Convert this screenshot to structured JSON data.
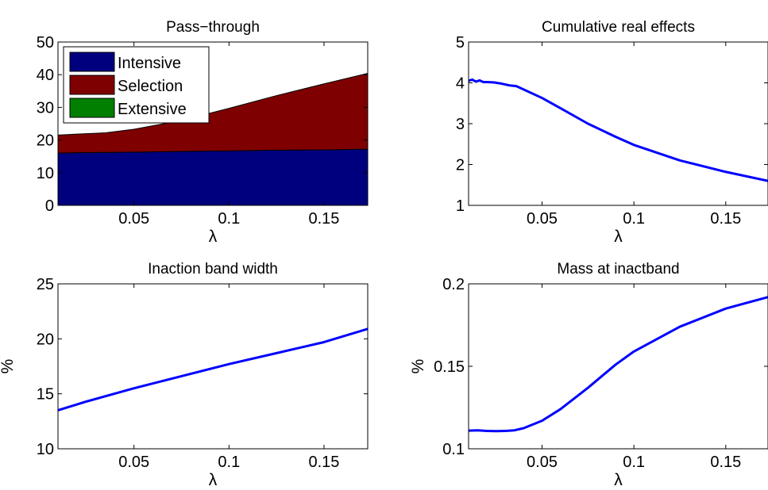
{
  "chart_data": [
    {
      "type": "area",
      "title": "Pass−through",
      "xlabel": "λ",
      "ylabel": "",
      "xlim": [
        0.01,
        0.173
      ],
      "ylim": [
        0,
        50
      ],
      "xticks": [
        0.05,
        0.1,
        0.15
      ],
      "xtick_labels": [
        "0.05",
        "0.1",
        "0.15"
      ],
      "yticks": [
        0,
        10,
        20,
        30,
        40,
        50
      ],
      "ytick_labels": [
        "0",
        "10",
        "20",
        "30",
        "40",
        "50"
      ],
      "stacked": true,
      "legend_position": "top-left",
      "x": [
        0.01,
        0.02,
        0.035,
        0.05,
        0.075,
        0.1,
        0.125,
        0.15,
        0.173
      ],
      "series": [
        {
          "name": "Intensive",
          "color": "#00007f",
          "values": [
            16.0,
            16.1,
            16.2,
            16.3,
            16.5,
            16.7,
            16.9,
            17.0,
            17.2
          ]
        },
        {
          "name": "Selection",
          "color": "#7f0000",
          "values": [
            5.5,
            5.7,
            6.0,
            7.0,
            9.5,
            13.0,
            16.7,
            20.2,
            23.2
          ]
        },
        {
          "name": "Extensive",
          "color": "#007f00",
          "values": [
            0,
            0,
            0,
            0,
            0,
            0,
            0,
            0,
            0
          ]
        }
      ]
    },
    {
      "type": "line",
      "title": "Cumulative real effects",
      "xlabel": "λ",
      "ylabel": "",
      "xlim": [
        0.01,
        0.173
      ],
      "ylim": [
        1,
        5
      ],
      "xticks": [
        0.05,
        0.1,
        0.15
      ],
      "xtick_labels": [
        "0.05",
        "0.1",
        "0.15"
      ],
      "yticks": [
        1,
        2,
        3,
        4,
        5
      ],
      "ytick_labels": [
        "1",
        "2",
        "3",
        "4",
        "5"
      ],
      "series": [
        {
          "color": "#0000ff",
          "x": [
            0.01,
            0.012,
            0.014,
            0.016,
            0.018,
            0.02,
            0.024,
            0.028,
            0.032,
            0.036,
            0.05,
            0.06,
            0.075,
            0.09,
            0.1,
            0.125,
            0.15,
            0.173
          ],
          "values": [
            4.05,
            4.08,
            4.03,
            4.06,
            4.02,
            4.02,
            4.01,
            3.98,
            3.94,
            3.92,
            3.63,
            3.38,
            3.0,
            2.68,
            2.48,
            2.1,
            1.82,
            1.6
          ]
        }
      ]
    },
    {
      "type": "line",
      "title": "Inaction band width",
      "xlabel": "λ",
      "ylabel": "%",
      "xlim": [
        0.01,
        0.173
      ],
      "ylim": [
        10,
        25
      ],
      "xticks": [
        0.05,
        0.1,
        0.15
      ],
      "xtick_labels": [
        "0.05",
        "0.1",
        "0.15"
      ],
      "yticks": [
        10,
        15,
        20,
        25
      ],
      "ytick_labels": [
        "10",
        "15",
        "20",
        "25"
      ],
      "series": [
        {
          "color": "#0000ff",
          "x": [
            0.01,
            0.025,
            0.05,
            0.075,
            0.1,
            0.125,
            0.15,
            0.173
          ],
          "values": [
            13.5,
            14.3,
            15.5,
            16.6,
            17.7,
            18.7,
            19.7,
            20.9
          ]
        }
      ]
    },
    {
      "type": "line",
      "title": "Mass at inactband",
      "xlabel": "λ",
      "ylabel": "%",
      "xlim": [
        0.01,
        0.173
      ],
      "ylim": [
        0.1,
        0.2
      ],
      "xticks": [
        0.05,
        0.1,
        0.15
      ],
      "xtick_labels": [
        "0.05",
        "0.1",
        "0.15"
      ],
      "yticks": [
        0.1,
        0.15,
        0.2
      ],
      "ytick_labels": [
        "0.1",
        "0.15",
        "0.2"
      ],
      "series": [
        {
          "color": "#0000ff",
          "x": [
            0.01,
            0.015,
            0.02,
            0.025,
            0.03,
            0.035,
            0.04,
            0.05,
            0.06,
            0.075,
            0.09,
            0.1,
            0.125,
            0.15,
            0.173
          ],
          "values": [
            0.111,
            0.1112,
            0.1108,
            0.1107,
            0.1108,
            0.1112,
            0.1125,
            0.117,
            0.124,
            0.137,
            0.151,
            0.159,
            0.174,
            0.185,
            0.192
          ]
        }
      ]
    }
  ]
}
